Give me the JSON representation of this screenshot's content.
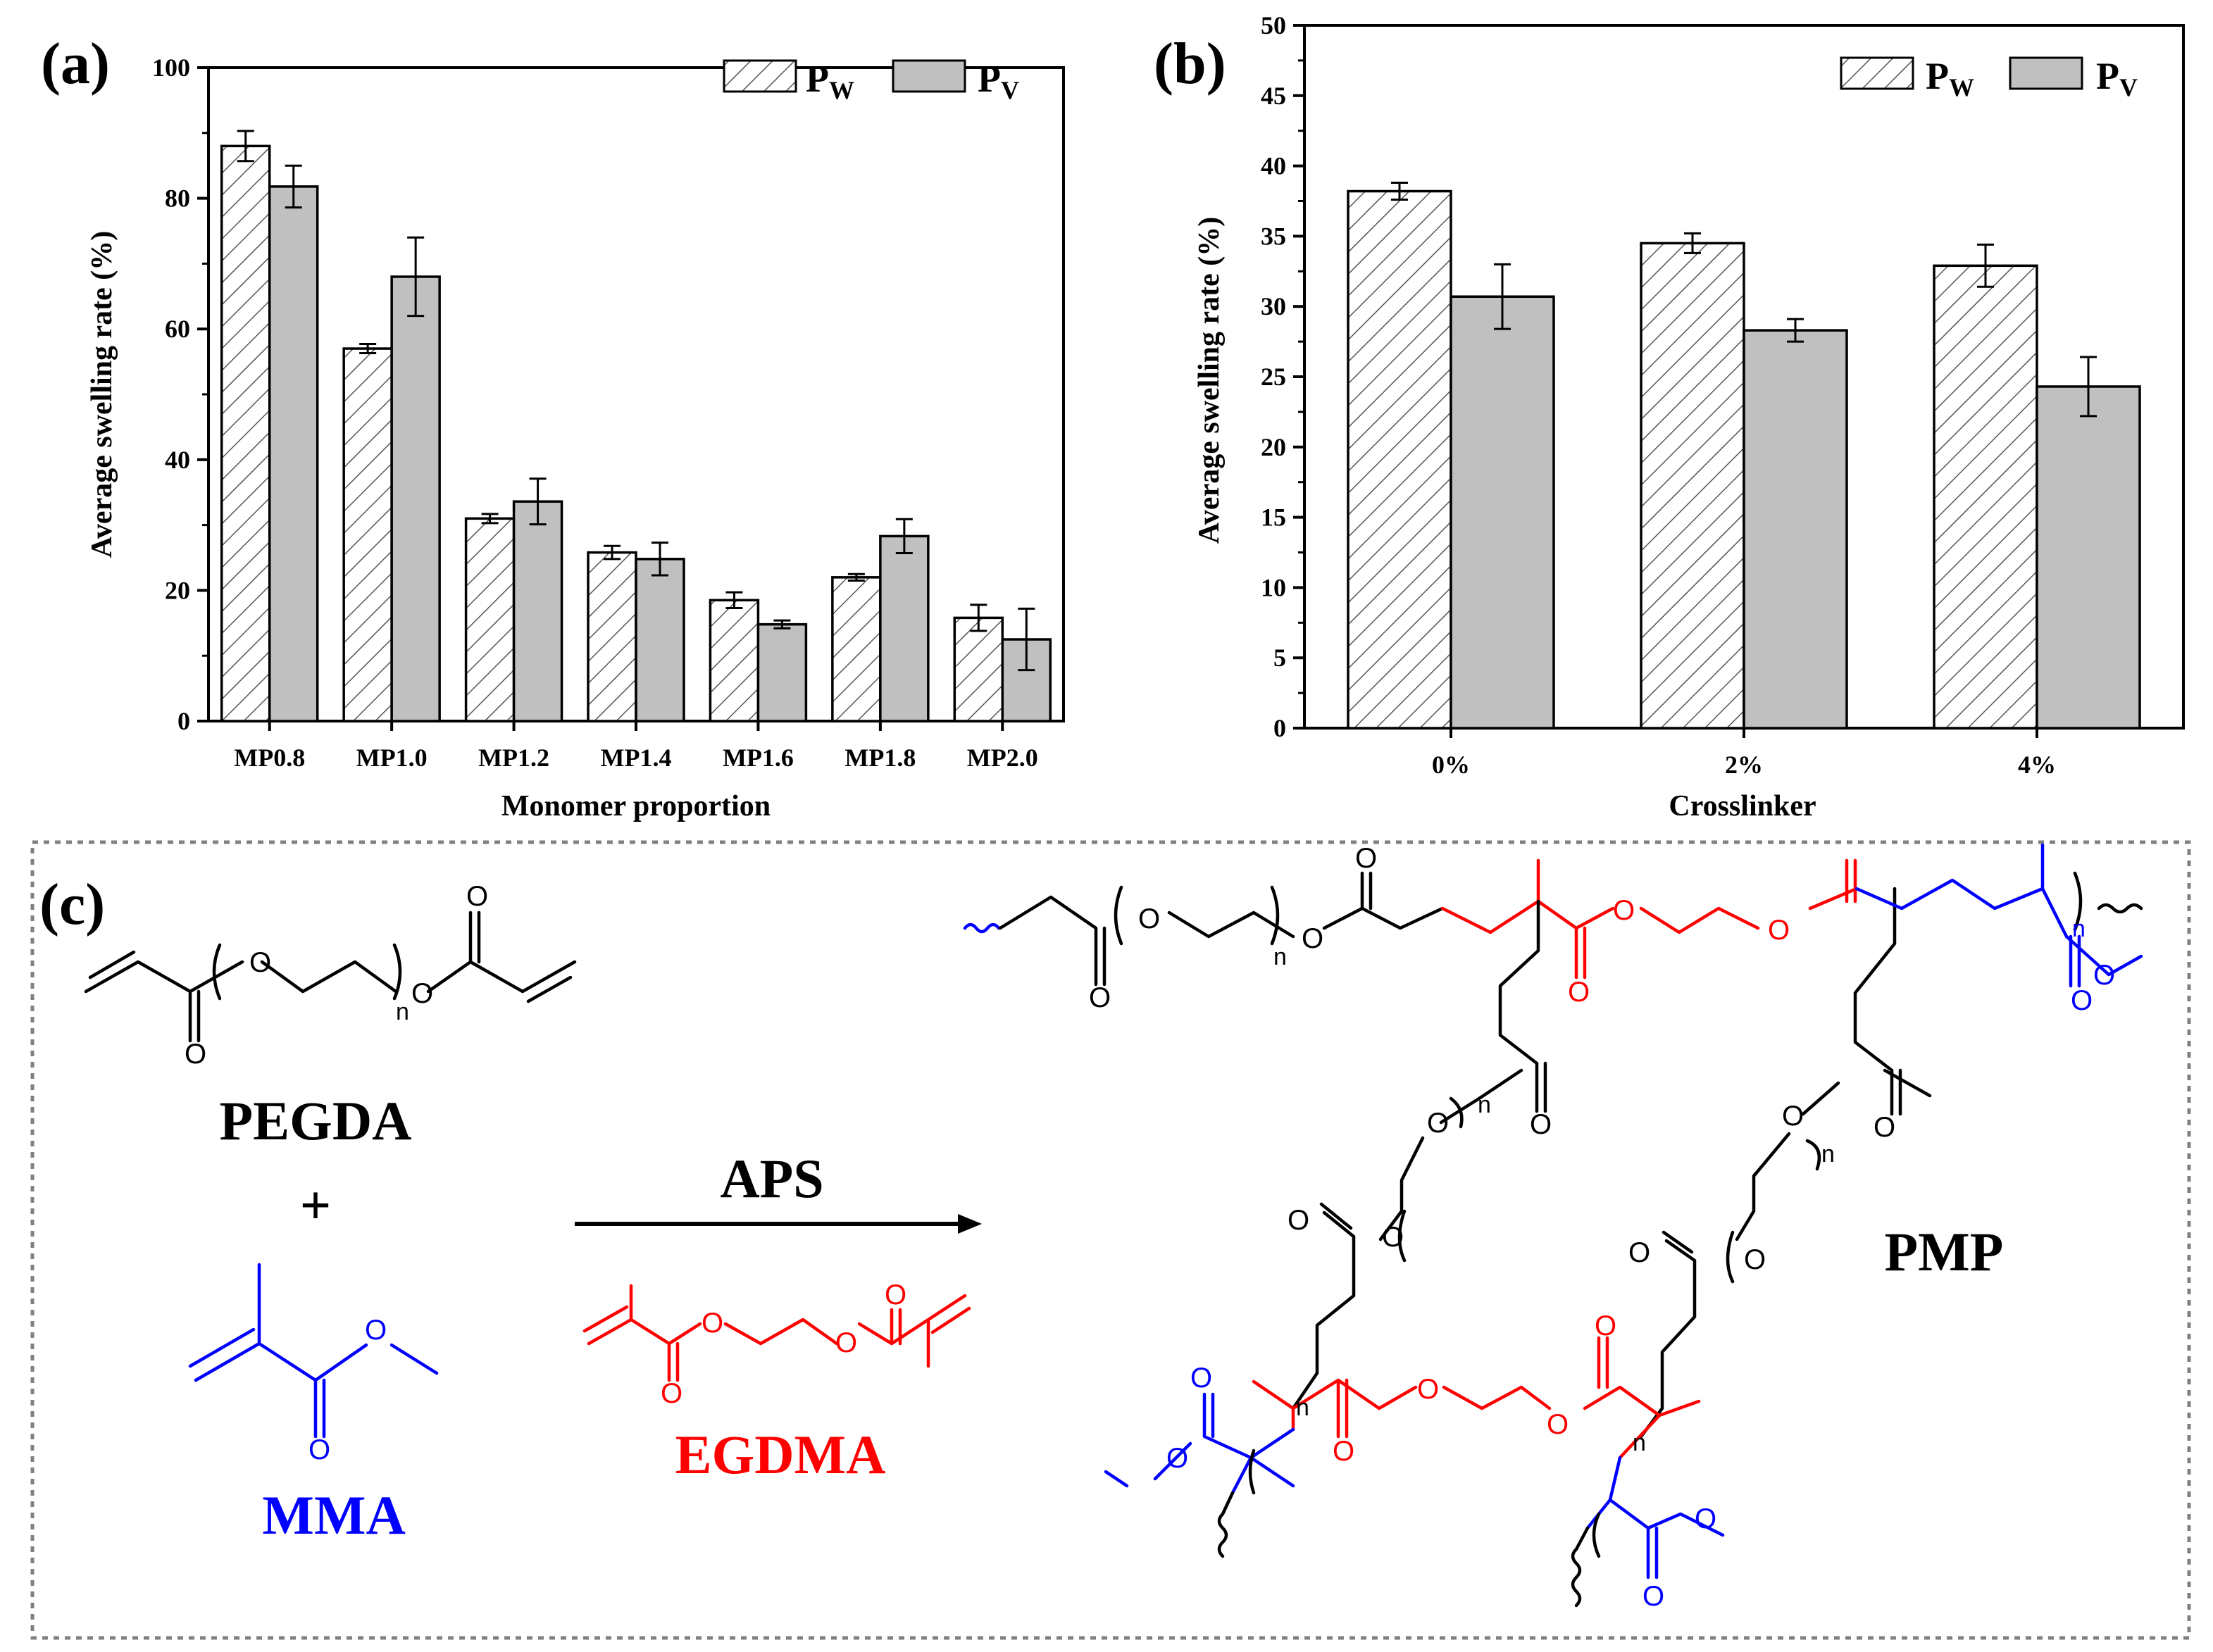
{
  "colors": {
    "pw_hatch": "#000000",
    "pv_fill": "#c0c0c0",
    "pegda": "#000000",
    "mma": "#0000ff",
    "egdma": "#ff0000",
    "box_border": "#808080"
  },
  "legend": {
    "pw_main": "P",
    "pw_sub": "W",
    "pv_main": "P",
    "pv_sub": "V"
  },
  "chart_data": [
    {
      "panel": "(a)",
      "type": "bar",
      "title": "",
      "xlabel": "Monomer proportion",
      "ylabel": "Average swelling rate (%)",
      "ylim": [
        0,
        100
      ],
      "yticks": [
        0,
        20,
        40,
        60,
        80,
        100
      ],
      "ytick_labels": [
        "0",
        "20",
        "40",
        "60",
        "80",
        "100"
      ],
      "categories": [
        "MP0.8",
        "MP1.0",
        "MP1.2",
        "MP1.4",
        "MP1.6",
        "MP1.8",
        "MP2.0"
      ],
      "series": [
        {
          "name": "Pw",
          "style": "hatched",
          "values": [
            88.0,
            57.0,
            31.0,
            25.8,
            18.5,
            22.0,
            15.8
          ],
          "errors": [
            2.3,
            0.7,
            0.7,
            1.0,
            1.2,
            0.5,
            2.0
          ]
        },
        {
          "name": "Pv",
          "style": "gray",
          "values": [
            81.8,
            68.0,
            33.6,
            24.8,
            14.8,
            28.3,
            12.5
          ],
          "errors": [
            3.2,
            6.0,
            3.5,
            2.5,
            0.6,
            2.6,
            4.7
          ]
        }
      ],
      "legend_position": "top-right"
    },
    {
      "panel": "(b)",
      "type": "bar",
      "title": "",
      "xlabel": "Crosslinker",
      "ylabel": "Average swelling rate (%)",
      "ylim": [
        0,
        50
      ],
      "yticks": [
        0,
        5,
        10,
        15,
        20,
        25,
        30,
        35,
        40,
        45,
        50
      ],
      "ytick_labels": [
        "0",
        "5",
        "10",
        "15",
        "20",
        "25",
        "30",
        "35",
        "40",
        "45",
        "50"
      ],
      "categories": [
        "0%",
        "2%",
        "4%"
      ],
      "series": [
        {
          "name": "Pw",
          "style": "hatched",
          "values": [
            38.2,
            34.5,
            32.9
          ],
          "errors": [
            0.6,
            0.7,
            1.5
          ]
        },
        {
          "name": "Pv",
          "style": "gray",
          "values": [
            30.7,
            28.3,
            24.3
          ],
          "errors": [
            2.3,
            0.8,
            2.1
          ]
        }
      ],
      "legend_position": "top-right"
    }
  ],
  "scheme": {
    "panel_label": "(c)",
    "reactant1": "PEGDA",
    "plus": "+",
    "reactant2": "MMA",
    "reagent": "APS",
    "crosslinker": "EGDMA",
    "product": "PMP",
    "atom_o": "O",
    "repeat_n": "n"
  }
}
